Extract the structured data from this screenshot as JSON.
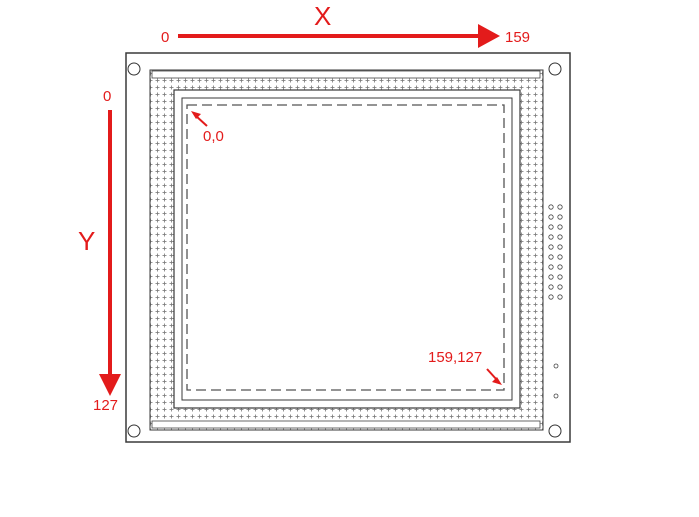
{
  "colors": {
    "annotation": "#e31b1b",
    "outline": "#3a3a3a",
    "dots": "#6a6a6a",
    "board": "#ffffff"
  },
  "x_axis": {
    "label": "X",
    "start": "0",
    "end": "159"
  },
  "y_axis": {
    "label": "Y",
    "start": "0",
    "end": "127"
  },
  "corners": {
    "origin": "0,0",
    "max": "159,127"
  },
  "icons": [
    "arrow-right-icon",
    "arrow-down-icon",
    "pointer-arrow-icon",
    "mounting-hole-icon"
  ]
}
